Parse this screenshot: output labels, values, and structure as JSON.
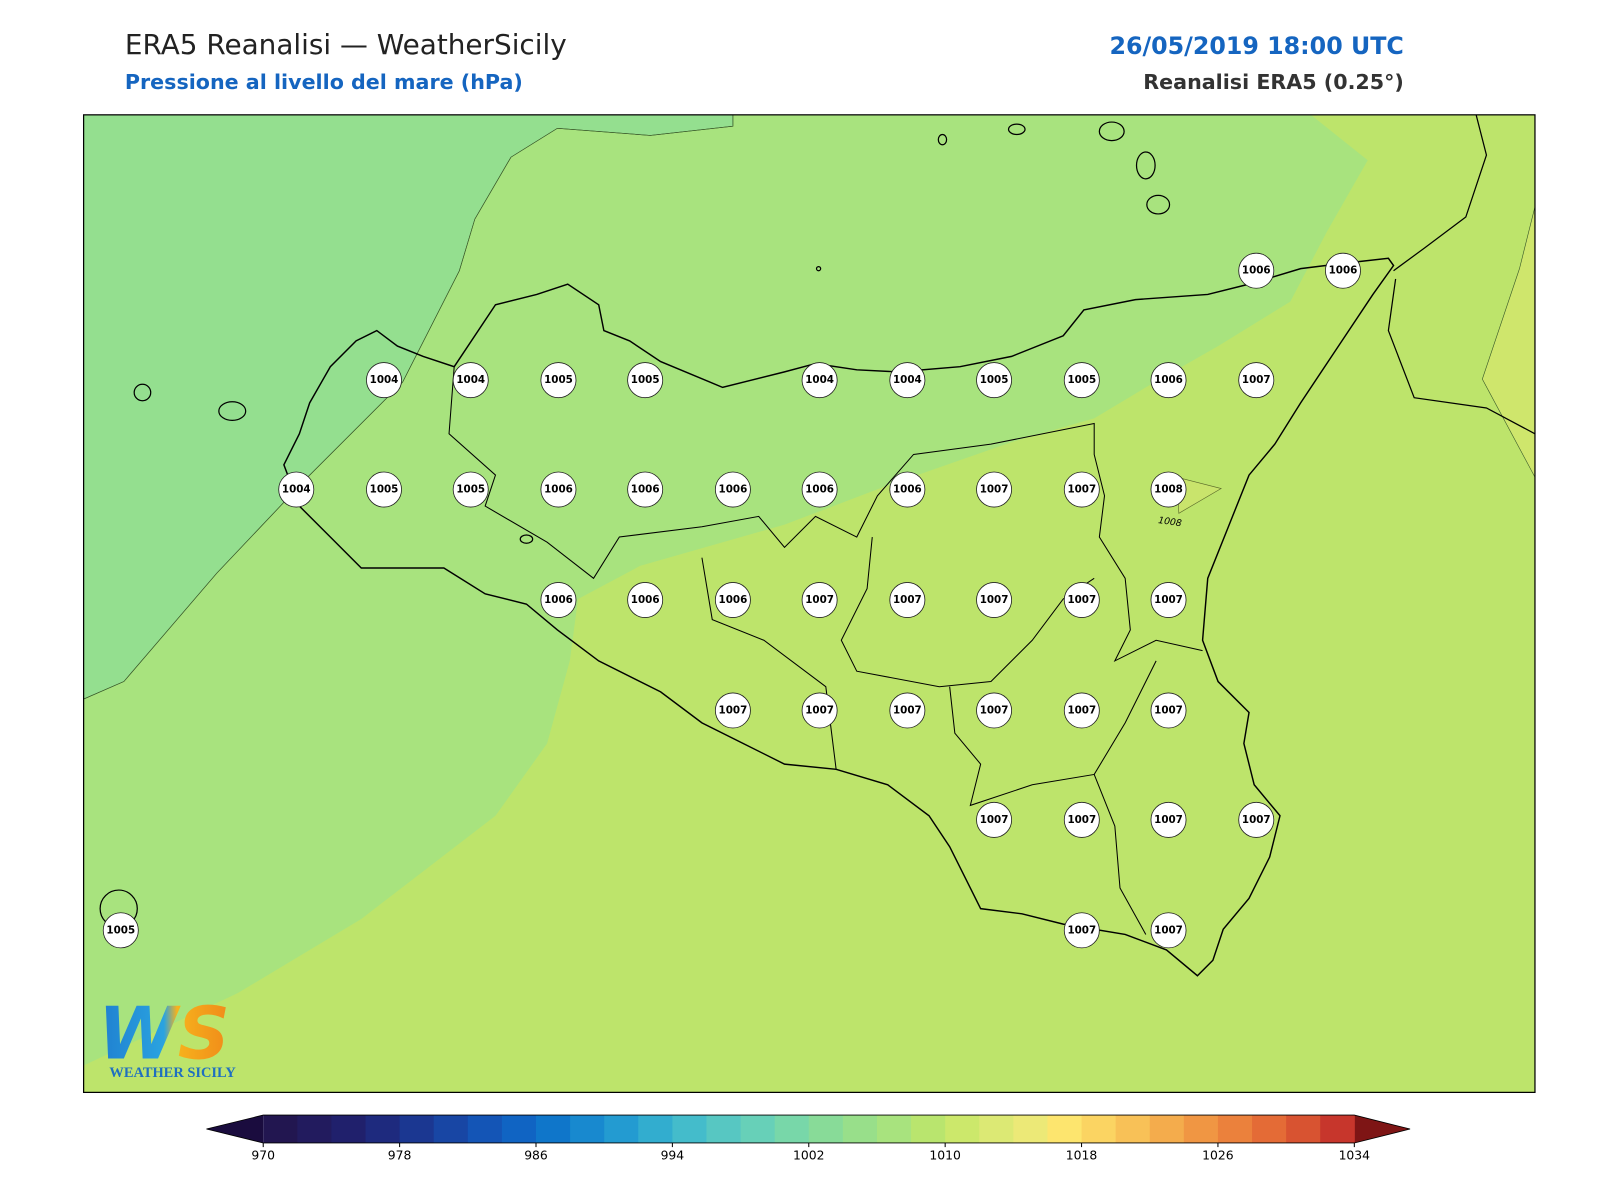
{
  "header": {
    "title": "ERA5 Reanalisi — WeatherSicily",
    "subtitle": "Pressione al livello del mare (hPa)",
    "date": "26/05/2019 18:00 UTC",
    "source": "Reanalisi ERA5 (0.25°)"
  },
  "map": {
    "stations": [
      1006,
      1006,
      1004,
      1004,
      1005,
      1005,
      1004,
      1004,
      1005,
      1005,
      1006,
      1007,
      1004,
      1005,
      1005,
      1006,
      1006,
      1006,
      1006,
      1006,
      1007,
      1007,
      1008,
      1006,
      1006,
      1006,
      1007,
      1007,
      1007,
      1007,
      1007,
      1007,
      1007,
      1007,
      1007,
      1007,
      1007,
      1007,
      1007,
      1007,
      1007,
      1005,
      1007,
      1007
    ],
    "contour_label": 1008
  },
  "colorbar": {
    "lim": [
      970,
      1034
    ],
    "ticks": [
      970,
      978,
      986,
      994,
      1002,
      1010,
      1018,
      1026,
      1034
    ],
    "colors": [
      "#221650",
      "#221b5e",
      "#20206c",
      "#1e2a7e",
      "#1b3791",
      "#1846a4",
      "#1455b6",
      "#1064c3",
      "#0f76ca",
      "#1889cf",
      "#239bd1",
      "#32adcf",
      "#44bccb",
      "#57c7c2",
      "#67d0b8",
      "#78d7a9",
      "#88db98",
      "#98df8a",
      "#a8e37e",
      "#b9e56e",
      "#cce86b",
      "#dce974",
      "#ece977",
      "#fde56e",
      "#fbd462",
      "#f8c157",
      "#f4ac4c",
      "#f09643",
      "#eb813c",
      "#e46b36",
      "#d85331",
      "#c7362c"
    ],
    "extend_colors": [
      "#1a0c3e",
      "#7e1515"
    ]
  },
  "logo": {
    "mark": "WS",
    "text": "WEATHER SICILY"
  }
}
